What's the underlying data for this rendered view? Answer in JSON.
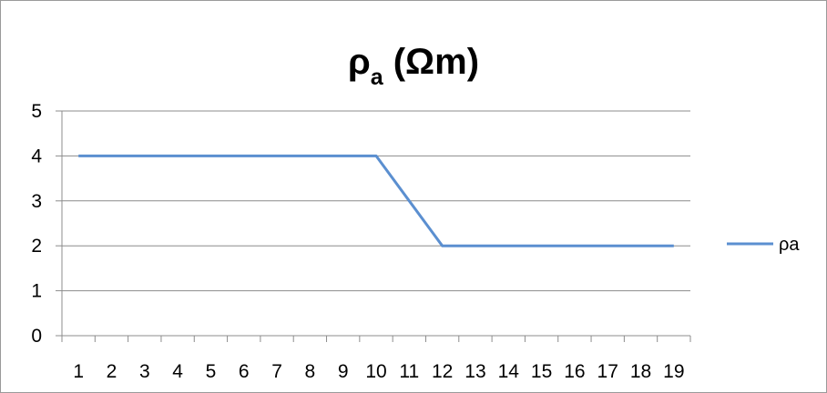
{
  "chart_data": {
    "type": "line",
    "title_main": "ρ",
    "title_sub": "a",
    "title_tail": " (Ωm)",
    "categories": [
      "1",
      "2",
      "3",
      "4",
      "5",
      "6",
      "7",
      "8",
      "9",
      "10",
      "11",
      "12",
      "13",
      "14",
      "15",
      "16",
      "17",
      "18",
      "19"
    ],
    "x": [
      1,
      2,
      3,
      4,
      5,
      6,
      7,
      8,
      9,
      10,
      11,
      12,
      13,
      14,
      15,
      16,
      17,
      18,
      19
    ],
    "series": [
      {
        "name": "ρa",
        "color": "#5b8fd0",
        "values": [
          4,
          4,
          4,
          4,
          4,
          4,
          4,
          4,
          4,
          4,
          3,
          2,
          2,
          2,
          2,
          2,
          2,
          2,
          2
        ]
      }
    ],
    "y_ticks": [
      "0",
      "1",
      "2",
      "3",
      "4",
      "5"
    ],
    "ylim": [
      0,
      5
    ],
    "grid": true,
    "legend_position": "right",
    "gridline_color": "#8c8c8c"
  }
}
